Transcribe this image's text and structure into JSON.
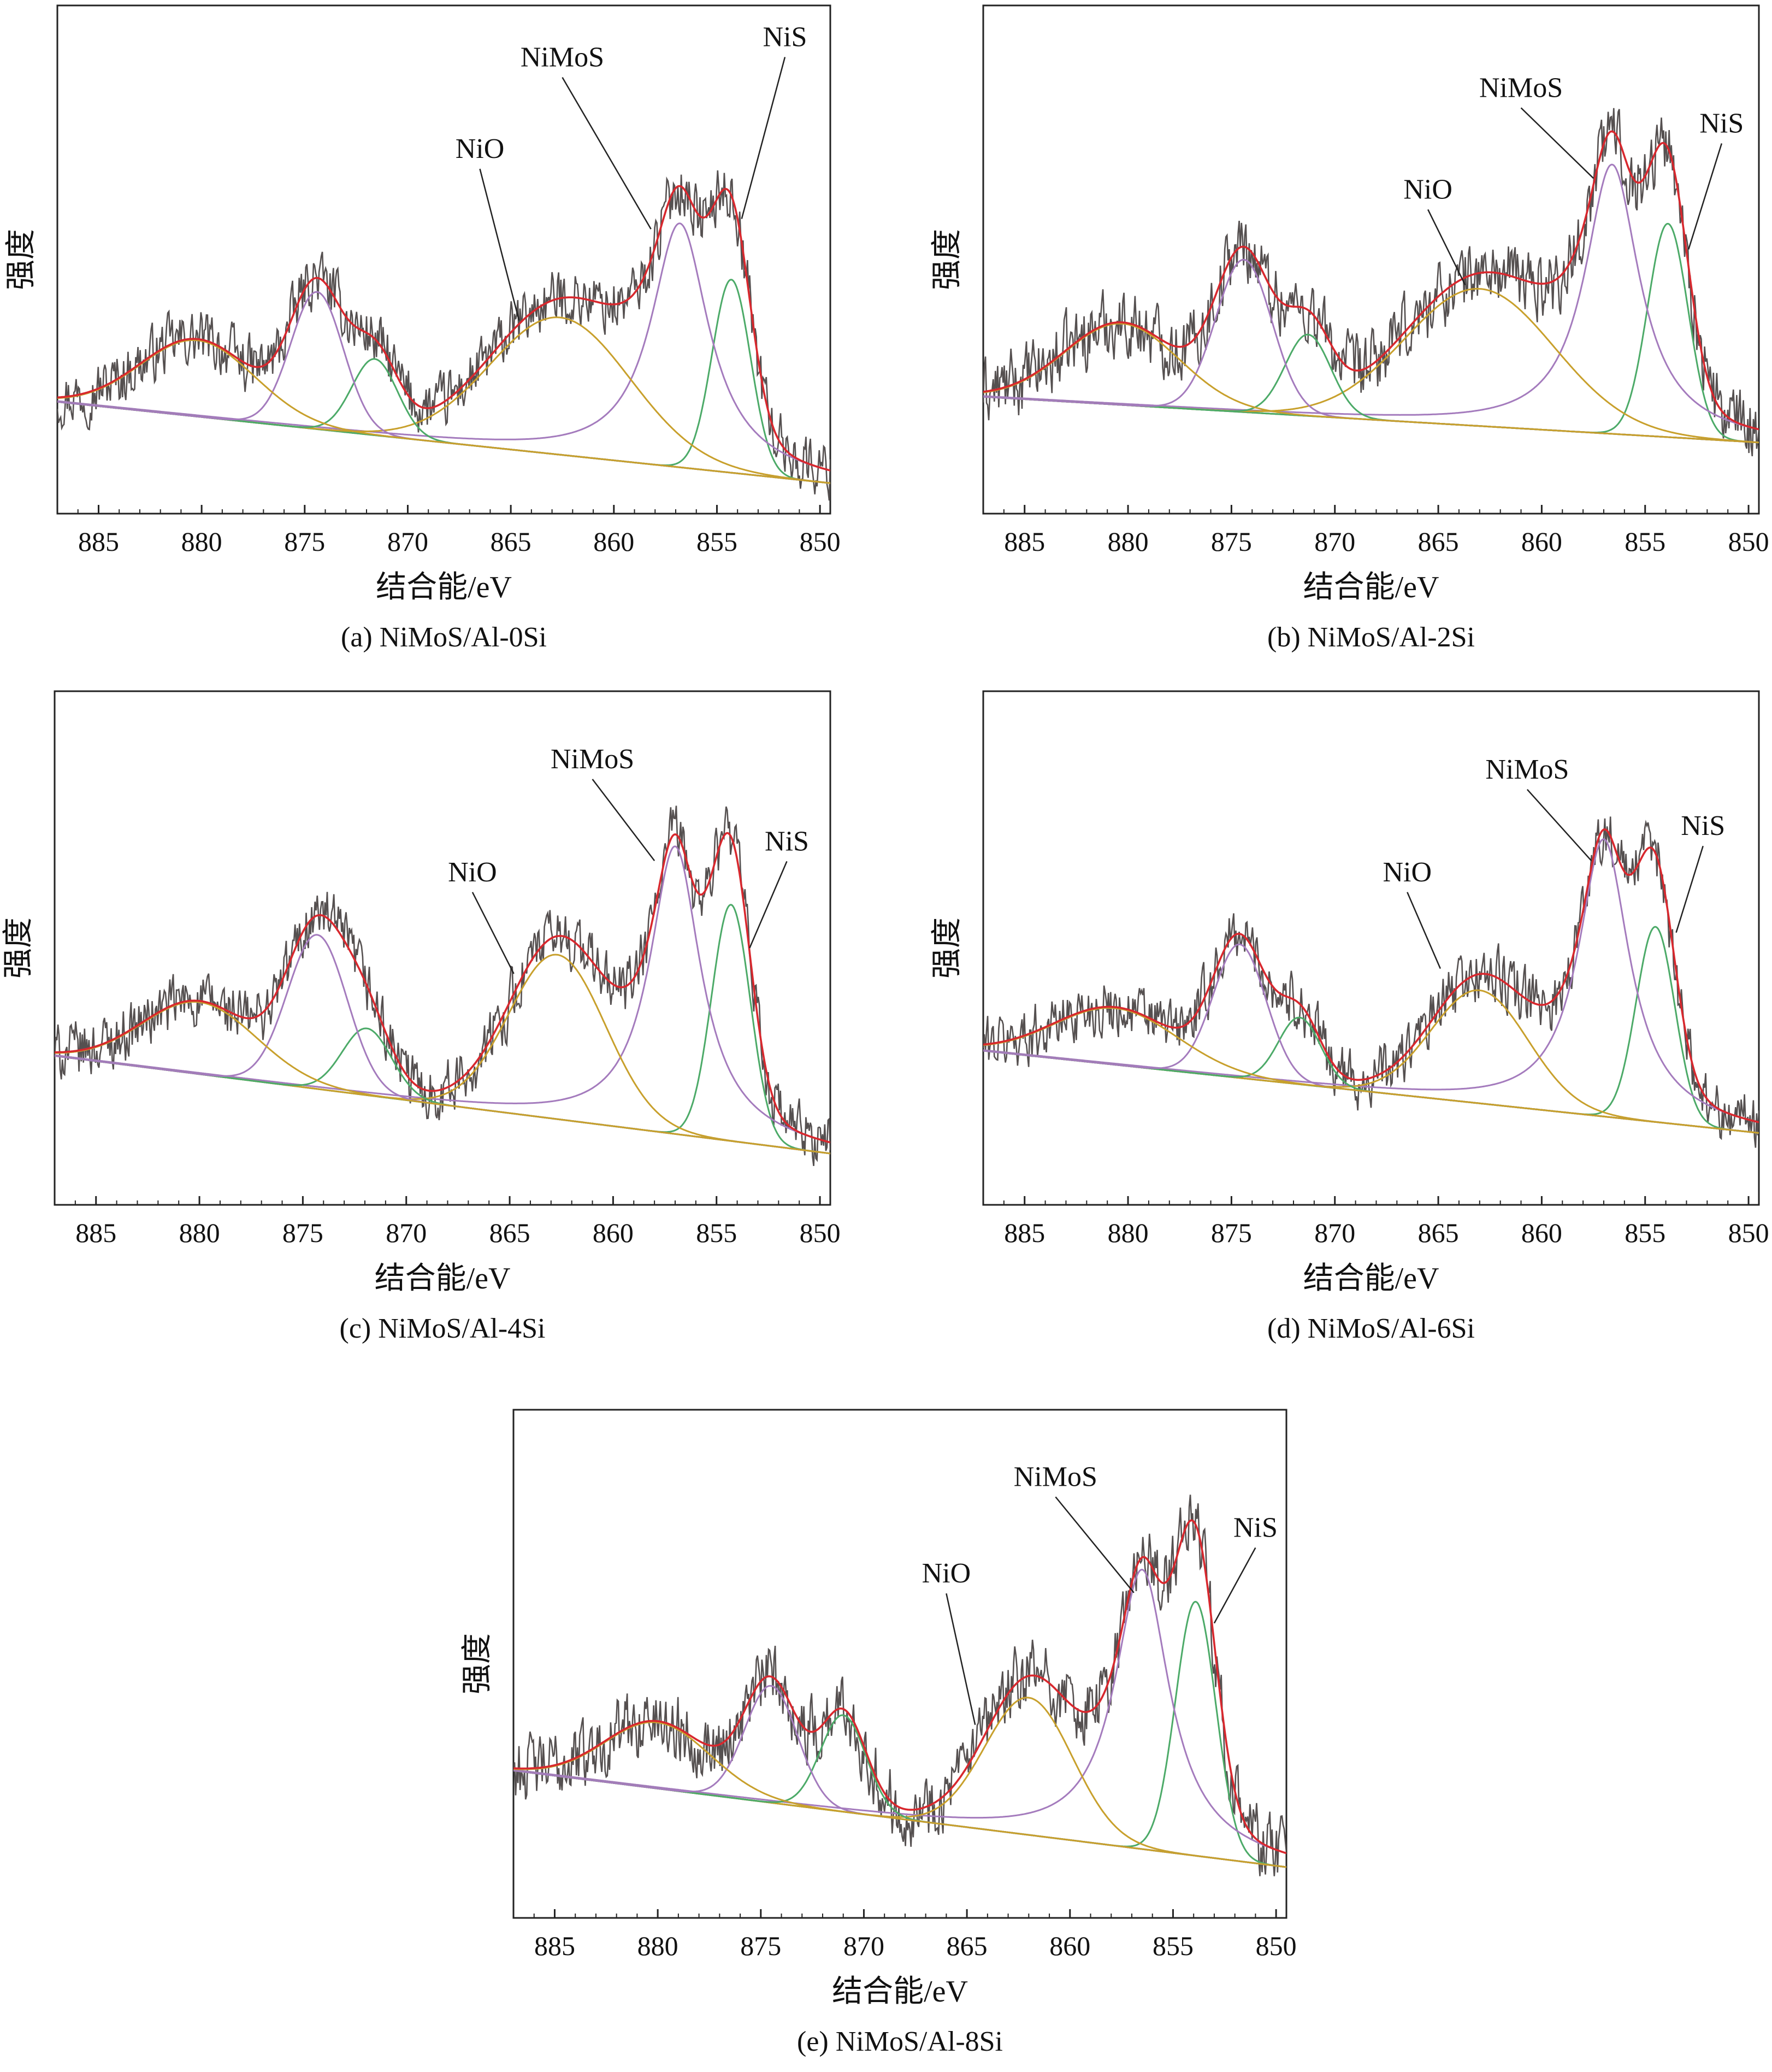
{
  "chart_data": [
    {
      "type": "line",
      "caption": "(a) NiMoS/Al-0Si",
      "xlabel": "结合能/eV",
      "ylabel": "强度",
      "xlim": [
        887,
        849.5
      ],
      "xticks": [
        885,
        880,
        875,
        870,
        865,
        860,
        855,
        850
      ],
      "ylim": [
        0,
        1
      ],
      "background": {
        "start": 0.22,
        "end": 0.06
      },
      "peaks": [
        {
          "name": "NiS",
          "label": "NiS",
          "center": 854.3,
          "fwhm": 2.2,
          "height": 0.38,
          "color": "#4caa68",
          "shape": "gauss"
        },
        {
          "name": "NiMoS",
          "label": "NiMoS",
          "center": 856.8,
          "fwhm": 3.4,
          "height": 0.48,
          "color": "#a47bbd",
          "shape": "lorentz"
        },
        {
          "name": "NiMoS-sat",
          "label": "",
          "center": 862.6,
          "fwhm": 8.0,
          "height": 0.27,
          "color": "#c8a02c",
          "shape": "gauss"
        },
        {
          "name": "NiO",
          "label": "NiO",
          "center": 871.6,
          "fwhm": 2.6,
          "height": 0.15,
          "color": "#4caa68",
          "shape": "gauss"
        },
        {
          "name": "Ni2p1/2",
          "label": "",
          "center": 874.4,
          "fwhm": 3.0,
          "height": 0.27,
          "color": "#a47bbd",
          "shape": "gauss"
        },
        {
          "name": "Ni2p1/2-sat",
          "label": "",
          "center": 880.2,
          "fwhm": 6.5,
          "height": 0.15,
          "color": "#c8a02c",
          "shape": "gauss"
        }
      ],
      "noise": 0.05,
      "annotations": [
        {
          "text": "NiO",
          "x": 866.5,
          "y": 0.7,
          "tx": 864.6,
          "ty": 0.38
        },
        {
          "text": "NiMoS",
          "x": 862.5,
          "y": 0.88,
          "tx": 858.2,
          "ty": 0.56
        },
        {
          "text": "NiS",
          "x": 851.7,
          "y": 0.92,
          "tx": 853.8,
          "ty": 0.58
        }
      ]
    },
    {
      "type": "line",
      "caption": "(b) NiMoS/Al-2Si",
      "xlabel": "结合能/eV",
      "ylabel": "强度",
      "xlim": [
        887,
        849.5
      ],
      "xticks": [
        885,
        880,
        875,
        870,
        865,
        860,
        855,
        850
      ],
      "ylim": [
        0,
        1
      ],
      "background": {
        "start": 0.23,
        "end": 0.14
      },
      "peaks": [
        {
          "name": "NiS",
          "label": "NiS",
          "center": 853.9,
          "fwhm": 2.3,
          "height": 0.42,
          "color": "#4caa68",
          "shape": "gauss"
        },
        {
          "name": "NiMoS",
          "label": "NiMoS",
          "center": 856.6,
          "fwhm": 3.2,
          "height": 0.53,
          "color": "#a47bbd",
          "shape": "lorentz"
        },
        {
          "name": "NiMoS-sat",
          "label": "",
          "center": 863.0,
          "fwhm": 8.5,
          "height": 0.27,
          "color": "#c8a02c",
          "shape": "gauss"
        },
        {
          "name": "NiO",
          "label": "NiO",
          "center": 871.3,
          "fwhm": 2.6,
          "height": 0.16,
          "color": "#4caa68",
          "shape": "gauss"
        },
        {
          "name": "Ni2p1/2",
          "label": "",
          "center": 874.4,
          "fwhm": 3.2,
          "height": 0.3,
          "color": "#a47bbd",
          "shape": "gauss"
        },
        {
          "name": "Ni2p1/2-sat",
          "label": "",
          "center": 880.3,
          "fwhm": 6.5,
          "height": 0.16,
          "color": "#c8a02c",
          "shape": "gauss"
        }
      ],
      "noise": 0.06,
      "annotations": [
        {
          "text": "NiO",
          "x": 865.5,
          "y": 0.62,
          "tx": 863.7,
          "ty": 0.45
        },
        {
          "text": "NiMoS",
          "x": 861.0,
          "y": 0.82,
          "tx": 857.5,
          "ty": 0.66
        },
        {
          "text": "NiS",
          "x": 851.3,
          "y": 0.75,
          "tx": 852.9,
          "ty": 0.52
        }
      ]
    },
    {
      "type": "line",
      "caption": "(c) NiMoS/Al-4Si",
      "xlabel": "结合能/eV",
      "ylabel": "强度",
      "xlim": [
        887,
        849.5
      ],
      "xticks": [
        885,
        880,
        875,
        870,
        865,
        860,
        855,
        850
      ],
      "ylim": [
        0,
        1
      ],
      "background": {
        "start": 0.29,
        "end": 0.1
      },
      "peaks": [
        {
          "name": "NiS",
          "label": "NiS",
          "center": 854.3,
          "fwhm": 2.2,
          "height": 0.46,
          "color": "#4caa68",
          "shape": "gauss"
        },
        {
          "name": "NiMoS",
          "label": "NiMoS",
          "center": 857.0,
          "fwhm": 3.0,
          "height": 0.56,
          "color": "#a47bbd",
          "shape": "lorentz"
        },
        {
          "name": "NiMoS-sat",
          "label": "",
          "center": 862.7,
          "fwhm": 5.5,
          "height": 0.32,
          "color": "#c8a02c",
          "shape": "gauss"
        },
        {
          "name": "NiO",
          "label": "NiO",
          "center": 871.9,
          "fwhm": 2.8,
          "height": 0.13,
          "color": "#4caa68",
          "shape": "gauss"
        },
        {
          "name": "Ni2p1/2",
          "label": "",
          "center": 874.3,
          "fwhm": 3.4,
          "height": 0.3,
          "color": "#a47bbd",
          "shape": "gauss"
        },
        {
          "name": "Ni2p1/2-sat",
          "label": "",
          "center": 880.0,
          "fwhm": 6.5,
          "height": 0.14,
          "color": "#c8a02c",
          "shape": "gauss"
        }
      ],
      "noise": 0.05,
      "annotations": [
        {
          "text": "NiO",
          "x": 866.8,
          "y": 0.63,
          "tx": 864.8,
          "ty": 0.45
        },
        {
          "text": "NiMoS",
          "x": 861.0,
          "y": 0.85,
          "tx": 858.0,
          "ty": 0.67
        },
        {
          "text": "NiS",
          "x": 851.6,
          "y": 0.69,
          "tx": 853.4,
          "ty": 0.5
        }
      ]
    },
    {
      "type": "line",
      "caption": "(d) NiMoS/Al-6Si",
      "xlabel": "结合能/eV",
      "ylabel": "强度",
      "xlim": [
        887,
        849.5
      ],
      "xticks": [
        885,
        880,
        875,
        870,
        865,
        860,
        855,
        850
      ],
      "ylim": [
        0,
        1
      ],
      "background": {
        "start": 0.3,
        "end": 0.14
      },
      "peaks": [
        {
          "name": "NiS",
          "label": "NiS",
          "center": 854.5,
          "fwhm": 2.2,
          "height": 0.38,
          "color": "#4caa68",
          "shape": "gauss"
        },
        {
          "name": "NiMoS",
          "label": "NiMoS",
          "center": 857.0,
          "fwhm": 3.0,
          "height": 0.54,
          "color": "#a47bbd",
          "shape": "lorentz"
        },
        {
          "name": "NiMoS-sat",
          "label": "",
          "center": 863.0,
          "fwhm": 5.5,
          "height": 0.22,
          "color": "#c8a02c",
          "shape": "gauss"
        },
        {
          "name": "NiO",
          "label": "NiO",
          "center": 871.7,
          "fwhm": 2.4,
          "height": 0.13,
          "color": "#4caa68",
          "shape": "gauss"
        },
        {
          "name": "Ni2p1/2",
          "label": "",
          "center": 874.6,
          "fwhm": 3.0,
          "height": 0.26,
          "color": "#a47bbd",
          "shape": "gauss"
        },
        {
          "name": "Ni2p1/2-sat",
          "label": "",
          "center": 880.6,
          "fwhm": 7.0,
          "height": 0.11,
          "color": "#c8a02c",
          "shape": "gauss"
        }
      ],
      "noise": 0.05,
      "annotations": [
        {
          "text": "NiO",
          "x": 866.5,
          "y": 0.63,
          "tx": 864.9,
          "ty": 0.46
        },
        {
          "text": "NiMoS",
          "x": 860.7,
          "y": 0.83,
          "tx": 857.6,
          "ty": 0.67
        },
        {
          "text": "NiS",
          "x": 852.2,
          "y": 0.72,
          "tx": 853.5,
          "ty": 0.53
        }
      ]
    },
    {
      "type": "line",
      "caption": "(e) NiMoS/Al-8Si",
      "xlabel": "结合能/eV",
      "ylabel": "强度",
      "xlim": [
        887,
        849.5
      ],
      "xticks": [
        885,
        880,
        875,
        870,
        865,
        860,
        855,
        850
      ],
      "ylim": [
        0,
        1
      ],
      "background": {
        "start": 0.29,
        "end": 0.1
      },
      "peaks": [
        {
          "name": "NiS",
          "label": "NiS",
          "center": 853.9,
          "fwhm": 2.3,
          "height": 0.5,
          "color": "#4caa68",
          "shape": "gauss"
        },
        {
          "name": "NiMoS",
          "label": "NiMoS",
          "center": 856.5,
          "fwhm": 3.2,
          "height": 0.55,
          "color": "#a47bbd",
          "shape": "lorentz"
        },
        {
          "name": "NiMoS-sat",
          "label": "",
          "center": 862.0,
          "fwhm": 5.0,
          "height": 0.27,
          "color": "#c8a02c",
          "shape": "gauss"
        },
        {
          "name": "NiO",
          "label": "NiO",
          "center": 871.0,
          "fwhm": 2.6,
          "height": 0.19,
          "color": "#4caa68",
          "shape": "gauss"
        },
        {
          "name": "Ni2p1/2",
          "label": "",
          "center": 874.5,
          "fwhm": 3.0,
          "height": 0.23,
          "color": "#a47bbd",
          "shape": "gauss"
        },
        {
          "name": "Ni2p1/2-sat",
          "label": "",
          "center": 880.0,
          "fwhm": 6.0,
          "height": 0.13,
          "color": "#c8a02c",
          "shape": "gauss"
        }
      ],
      "noise": 0.06,
      "annotations": [
        {
          "text": "NiO",
          "x": 866.0,
          "y": 0.66,
          "tx": 864.6,
          "ty": 0.38
        },
        {
          "text": "NiMoS",
          "x": 860.7,
          "y": 0.85,
          "tx": 856.9,
          "ty": 0.64
        },
        {
          "text": "NiS",
          "x": 851.0,
          "y": 0.75,
          "tx": 853.0,
          "ty": 0.58
        }
      ]
    }
  ]
}
